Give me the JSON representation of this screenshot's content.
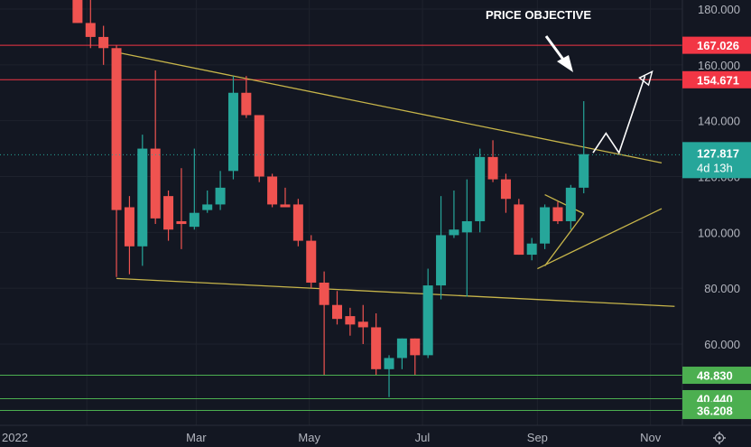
{
  "chart_data": {
    "type": "candlestick",
    "title": "",
    "xlabel": "",
    "ylabel": "",
    "ylim": [
      36,
      183
    ],
    "grid": true,
    "colors": {
      "background": "#131722",
      "up": "#26a69a",
      "down": "#ef5350",
      "trendline": "#c7b54a",
      "resistance": "#f23645",
      "support": "#4caf50",
      "annotation": "#ffffff"
    },
    "x_ticks": [
      "2022",
      "Mar",
      "May",
      "Jul",
      "Sep",
      "Nov"
    ],
    "y_ticks": [
      "180.000",
      "160.000",
      "140.000",
      "120.000",
      "100.000",
      "80.000",
      "60.000"
    ],
    "current_price": {
      "value": "127.817",
      "countdown": "4d 13h"
    },
    "levels": [
      {
        "label": "167.026",
        "value": 167.026,
        "kind": "resistance"
      },
      {
        "label": "154.671",
        "value": 154.671,
        "kind": "resistance"
      },
      {
        "label": "48.830",
        "value": 48.83,
        "kind": "support"
      },
      {
        "label": "40.440",
        "value": 40.44,
        "kind": "support"
      },
      {
        "label": "36.208",
        "value": 36.208,
        "kind": "support"
      }
    ],
    "annotation": "PRICE OBJECTIVE",
    "x_domain": [
      "2021-11-22",
      "2022-11-07"
    ],
    "candles": [
      {
        "t": "2021-12-27",
        "o": 192,
        "h": 200,
        "l": 175,
        "c": 175
      },
      {
        "t": "2022-01-03",
        "o": 175,
        "h": 184,
        "l": 166,
        "c": 170
      },
      {
        "t": "2022-01-10",
        "o": 170,
        "h": 174,
        "l": 160,
        "c": 166
      },
      {
        "t": "2022-01-17",
        "o": 166,
        "h": 167,
        "l": 84,
        "c": 108
      },
      {
        "t": "2022-01-24",
        "o": 109,
        "h": 113,
        "l": 85,
        "c": 95
      },
      {
        "t": "2022-01-31",
        "o": 95,
        "h": 135,
        "l": 88,
        "c": 130
      },
      {
        "t": "2022-02-07",
        "o": 130,
        "h": 158,
        "l": 103,
        "c": 105
      },
      {
        "t": "2022-02-14",
        "o": 113,
        "h": 115,
        "l": 97,
        "c": 101
      },
      {
        "t": "2022-02-21",
        "o": 104,
        "h": 123,
        "l": 94,
        "c": 103
      },
      {
        "t": "2022-02-28",
        "o": 102,
        "h": 130,
        "l": 101,
        "c": 107
      },
      {
        "t": "2022-03-07",
        "o": 108,
        "h": 115,
        "l": 107,
        "c": 110
      },
      {
        "t": "2022-03-14",
        "o": 110,
        "h": 122,
        "l": 108,
        "c": 116
      },
      {
        "t": "2022-03-21",
        "o": 122,
        "h": 156,
        "l": 119,
        "c": 150
      },
      {
        "t": "2022-03-28",
        "o": 150,
        "h": 156,
        "l": 141,
        "c": 142
      },
      {
        "t": "2022-04-04",
        "o": 142,
        "h": 142,
        "l": 118,
        "c": 120
      },
      {
        "t": "2022-04-11",
        "o": 120,
        "h": 121,
        "l": 109,
        "c": 110
      },
      {
        "t": "2022-04-18",
        "o": 110,
        "h": 116,
        "l": 109,
        "c": 109
      },
      {
        "t": "2022-04-25",
        "o": 110,
        "h": 112,
        "l": 95,
        "c": 97
      },
      {
        "t": "2022-05-02",
        "o": 97,
        "h": 99,
        "l": 80,
        "c": 82
      },
      {
        "t": "2022-05-09",
        "o": 82,
        "h": 86,
        "l": 49,
        "c": 74
      },
      {
        "t": "2022-05-16",
        "o": 74,
        "h": 79,
        "l": 67,
        "c": 69
      },
      {
        "t": "2022-05-23",
        "o": 70,
        "h": 73,
        "l": 63,
        "c": 67
      },
      {
        "t": "2022-05-30",
        "o": 68,
        "h": 74,
        "l": 60,
        "c": 66
      },
      {
        "t": "2022-06-06",
        "o": 66,
        "h": 71,
        "l": 49,
        "c": 51
      },
      {
        "t": "2022-06-13",
        "o": 51,
        "h": 56,
        "l": 41,
        "c": 55
      },
      {
        "t": "2022-06-20",
        "o": 55,
        "h": 62,
        "l": 51,
        "c": 62
      },
      {
        "t": "2022-06-27",
        "o": 62,
        "h": 62,
        "l": 49,
        "c": 56
      },
      {
        "t": "2022-07-04",
        "o": 56,
        "h": 87,
        "l": 55,
        "c": 81
      },
      {
        "t": "2022-07-11",
        "o": 81,
        "h": 113,
        "l": 76,
        "c": 99
      },
      {
        "t": "2022-07-18",
        "o": 99,
        "h": 115,
        "l": 98,
        "c": 101
      },
      {
        "t": "2022-07-25",
        "o": 100,
        "h": 119,
        "l": 77,
        "c": 104
      },
      {
        "t": "2022-08-01",
        "o": 104,
        "h": 130,
        "l": 100,
        "c": 127
      },
      {
        "t": "2022-08-08",
        "o": 127,
        "h": 133,
        "l": 118,
        "c": 119
      },
      {
        "t": "2022-08-15",
        "o": 119,
        "h": 121,
        "l": 107,
        "c": 112
      },
      {
        "t": "2022-08-22",
        "o": 110,
        "h": 112,
        "l": 92,
        "c": 92
      },
      {
        "t": "2022-08-29",
        "o": 92,
        "h": 98,
        "l": 90,
        "c": 96
      },
      {
        "t": "2022-09-05",
        "o": 96,
        "h": 110,
        "l": 94,
        "c": 109
      },
      {
        "t": "2022-09-12",
        "o": 109,
        "h": 111,
        "l": 103,
        "c": 104
      },
      {
        "t": "2022-09-19",
        "o": 104,
        "h": 117,
        "l": 101,
        "c": 116
      },
      {
        "t": "2022-09-26",
        "o": 116,
        "h": 147,
        "l": 114,
        "c": 128
      }
    ],
    "trendlines": [
      {
        "name": "wedge-upper",
        "points": [
          [
            "2022-01-17",
            164.5
          ],
          [
            "2022-11-07",
            124.9
          ]
        ]
      },
      {
        "name": "wedge-lower",
        "points": [
          [
            "2022-01-17",
            83.5
          ],
          [
            "2022-11-14",
            73.5
          ]
        ]
      },
      {
        "name": "channel-lower",
        "points": [
          [
            "2022-09-01",
            87.0
          ],
          [
            "2022-11-07",
            108.5
          ]
        ]
      },
      {
        "name": "triangle-top",
        "points": [
          [
            "2022-09-05",
            113.5
          ],
          [
            "2022-09-26",
            106.7
          ]
        ]
      },
      {
        "name": "triangle-bottom",
        "points": [
          [
            "2022-09-05",
            88.0
          ],
          [
            "2022-09-26",
            106.7
          ]
        ]
      }
    ],
    "projection": [
      [
        "2022-10-01",
        128.5
      ],
      [
        "2022-10-08",
        135.5
      ],
      [
        "2022-10-15",
        128.5
      ],
      [
        "2022-10-29",
        156.0
      ]
    ]
  }
}
